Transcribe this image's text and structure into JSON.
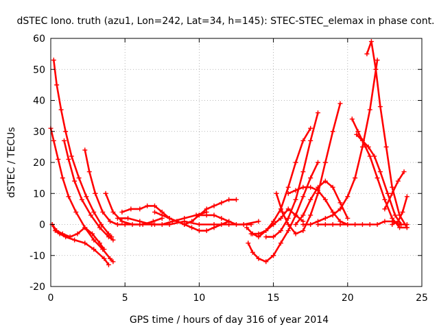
{
  "chart_data": {
    "type": "scatter",
    "title": "dSTEC Iono. truth (azu1, Lon=242, Lat=34, h=145): STEC-STEC_elemax in phase cont.",
    "xlabel": "GPS time / hours of day 316 of year 2014",
    "ylabel": "dSTEC  / TECUs",
    "xlim": [
      0,
      25
    ],
    "ylim": [
      -20,
      60
    ],
    "xticks": [
      0,
      5,
      10,
      15,
      20,
      25
    ],
    "yticks": [
      -20,
      -10,
      0,
      10,
      20,
      30,
      40,
      50,
      60
    ],
    "grid": true,
    "marker": "+",
    "color": "#ff0000",
    "series": [
      {
        "x": [
          0.2,
          0.4,
          0.7,
          1.0,
          1.4,
          1.9,
          2.4,
          2.9,
          3.4,
          3.9,
          4.1
        ],
        "y": [
          53,
          45,
          37,
          30,
          22,
          15,
          9,
          4,
          0,
          -3,
          -4
        ]
      },
      {
        "x": [
          0.0,
          0.2,
          0.5,
          0.8,
          1.2,
          1.7,
          2.3,
          2.9,
          3.5,
          4.0,
          4.2
        ],
        "y": [
          31,
          27,
          21,
          15,
          9,
          4,
          -1,
          -5,
          -8,
          -11,
          -12
        ]
      },
      {
        "x": [
          0.9,
          1.2,
          1.6,
          2.1,
          2.7,
          3.3,
          3.9,
          4.2
        ],
        "y": [
          27,
          21,
          14,
          8,
          3,
          -1,
          -4,
          -5
        ]
      },
      {
        "x": [
          0.1,
          0.4,
          0.8,
          1.3,
          1.8,
          2.3,
          2.8,
          3.3,
          3.6
        ],
        "y": [
          0,
          -2,
          -3,
          -4,
          -3,
          -1,
          -3,
          -6,
          -8
        ]
      },
      {
        "x": [
          0.1,
          0.3,
          0.6,
          1.0,
          1.6,
          2.3,
          2.9,
          3.6,
          3.9
        ],
        "y": [
          0,
          -2,
          -3,
          -4,
          -5,
          -6,
          -8,
          -11,
          -13
        ]
      },
      {
        "x": [
          2.3,
          2.6,
          3.0,
          3.5,
          4.0,
          4.5,
          5.0
        ],
        "y": [
          24,
          17,
          10,
          4,
          1,
          0,
          0
        ]
      },
      {
        "x": [
          3.7,
          4.2,
          4.8,
          5.5,
          6.2,
          6.9,
          7.5
        ],
        "y": [
          10,
          4,
          1,
          0,
          0,
          1,
          2
        ]
      },
      {
        "x": [
          4.8,
          5.4,
          6.0,
          6.5,
          7.0,
          7.5,
          8.0,
          8.5
        ],
        "y": [
          4,
          5,
          5,
          6,
          6,
          4,
          2,
          1
        ]
      },
      {
        "x": [
          4.5,
          5.2,
          6.0,
          6.8,
          7.5,
          8.2,
          9.0,
          9.8,
          10.5
        ],
        "y": [
          2,
          2,
          1,
          0,
          0,
          1,
          2,
          3,
          4
        ]
      },
      {
        "x": [
          7.0,
          7.5,
          8.0,
          8.5,
          9.0,
          9.5,
          10.0,
          10.5,
          11.0,
          11.5,
          12.0
        ],
        "y": [
          4,
          3,
          2,
          1,
          0,
          -1,
          -2,
          -2,
          -1,
          0,
          1
        ]
      },
      {
        "x": [
          9.0,
          9.5,
          10.0,
          10.5,
          11.0,
          11.5,
          12.0,
          12.5
        ],
        "y": [
          0,
          1,
          3,
          5,
          6,
          7,
          8,
          8
        ]
      },
      {
        "x": [
          10.0,
          10.5,
          11.0,
          11.5,
          12.0,
          12.5,
          13.0,
          13.5
        ],
        "y": [
          3,
          3,
          3,
          2,
          1,
          0,
          0,
          0
        ]
      },
      {
        "x": [
          5.0,
          6.0,
          7.0,
          8.0,
          9.0,
          10.0,
          11.0,
          12.0,
          13.0,
          14.0
        ],
        "y": [
          0,
          0,
          0,
          0,
          1,
          0,
          0,
          0,
          0,
          1
        ]
      },
      {
        "x": [
          13.5,
          14.0,
          14.5,
          15.0,
          15.5,
          16.0,
          16.5,
          17.0
        ],
        "y": [
          -3,
          -3,
          -2,
          0,
          2,
          5,
          3,
          1
        ]
      },
      {
        "x": [
          13.2,
          13.6,
          14.0,
          14.5,
          15.0,
          15.5,
          16.0,
          16.5,
          17.0,
          17.5
        ],
        "y": [
          -1,
          -3,
          -4,
          -2,
          1,
          5,
          12,
          20,
          27,
          31
        ]
      },
      {
        "x": [
          13.3,
          13.6,
          14.0,
          14.5,
          15.0,
          15.5,
          16.0,
          16.5,
          17.0,
          17.5,
          18.0
        ],
        "y": [
          -6,
          -9,
          -11,
          -12,
          -10,
          -6,
          -2,
          3,
          9,
          15,
          20
        ]
      },
      {
        "x": [
          14.5,
          15.0,
          15.5,
          16.0,
          16.5,
          17.0,
          17.5,
          18.0
        ],
        "y": [
          -4,
          -4,
          -2,
          2,
          8,
          17,
          27,
          36
        ]
      },
      {
        "x": [
          15.2,
          15.6,
          16.0,
          16.5,
          17.0,
          17.5,
          18.0,
          18.5,
          19.0,
          19.5
        ],
        "y": [
          10,
          4,
          0,
          -3,
          -2,
          3,
          10,
          20,
          30,
          39
        ]
      },
      {
        "x": [
          16.0,
          16.5,
          17.0,
          17.5,
          18.0,
          18.5,
          19.0,
          19.5,
          20.0
        ],
        "y": [
          10,
          11,
          12,
          12,
          11,
          8,
          4,
          1,
          0
        ]
      },
      {
        "x": [
          16.5,
          17.0,
          17.5,
          18.0,
          18.5,
          19.0,
          19.5,
          20.0
        ],
        "y": [
          0,
          3,
          8,
          12,
          14,
          12,
          7,
          2
        ]
      },
      {
        "x": [
          17.0,
          17.5,
          18.0,
          18.5,
          19.0,
          19.5,
          20.0,
          20.5,
          21.0,
          21.5,
          22.0
        ],
        "y": [
          0,
          0,
          1,
          2,
          3,
          5,
          9,
          15,
          25,
          37,
          53
        ]
      },
      {
        "x": [
          20.3,
          20.7,
          21.0,
          21.5,
          22.0,
          22.5,
          23.0,
          23.5,
          24.0
        ],
        "y": [
          34,
          30,
          27,
          22,
          15,
          8,
          2,
          -1,
          -1
        ]
      },
      {
        "x": [
          20.6,
          21.0,
          21.4,
          21.8,
          22.2,
          22.7,
          23.2,
          23.6
        ],
        "y": [
          29,
          27,
          25,
          22,
          17,
          10,
          3,
          0
        ]
      },
      {
        "x": [
          21.3,
          21.6,
          21.9,
          22.2,
          22.6,
          23.0,
          23.5,
          24.0
        ],
        "y": [
          55,
          59,
          50,
          38,
          25,
          12,
          3,
          -1
        ]
      },
      {
        "x": [
          18.0,
          18.5,
          19.0,
          19.5,
          20.0,
          20.5,
          21.0,
          21.5,
          22.0,
          22.5,
          23.0,
          23.5,
          24.0
        ],
        "y": [
          0,
          0,
          0,
          0,
          0,
          0,
          0,
          0,
          0,
          1,
          1,
          0,
          0
        ]
      },
      {
        "x": [
          22.5,
          23.0,
          23.4,
          23.8
        ],
        "y": [
          5,
          10,
          14,
          17
        ]
      },
      {
        "x": [
          23.0,
          23.4,
          23.7,
          24.0
        ],
        "y": [
          0,
          1,
          4,
          9
        ]
      }
    ]
  }
}
